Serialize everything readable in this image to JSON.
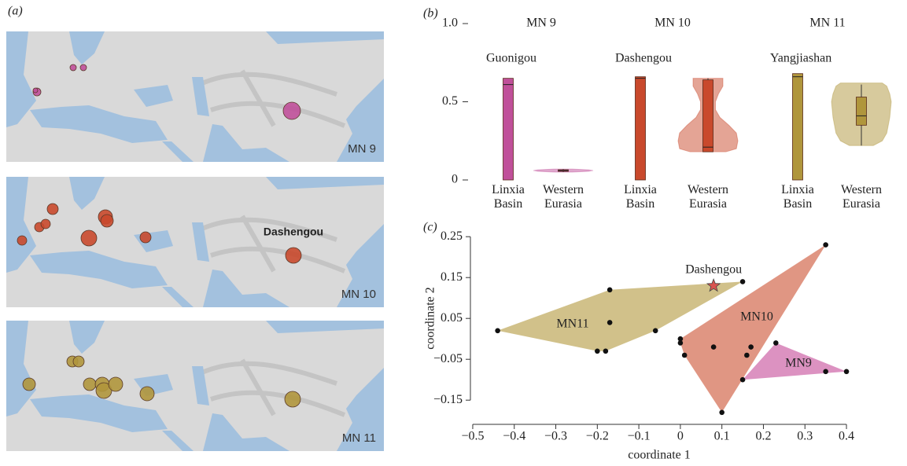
{
  "maps": {
    "panel_label": "(a)",
    "panels": [
      {
        "label": "MN 9",
        "color": "#c0509a"
      },
      {
        "label": "MN 10",
        "color": "#c9492c",
        "annotation": "Dashengou"
      },
      {
        "label": "MN 11",
        "color": "#b0963c"
      }
    ]
  },
  "chart_data": [
    {
      "type": "violin",
      "panel_label": "(b)",
      "ylim": [
        0,
        1
      ],
      "yticks": [
        0,
        0.5,
        {
          "value": 1,
          "label": "1.0"
        }
      ],
      "panels": [
        {
          "title": "MN 9",
          "annotation": "Guonigou",
          "color": "#c0509a",
          "groups": [
            {
              "name": "Linxia Basin",
              "box": {
                "min": 0,
                "q1": 0,
                "median": 0.61,
                "q3": 0.65,
                "max": 0.65
              }
            },
            {
              "name": "Western Eurasia",
              "box": {
                "min": 0.05,
                "q1": 0.055,
                "median": 0.06,
                "q3": 0.065,
                "max": 0.07
              },
              "violin": {
                "values": [
                  0.05,
                  0.055,
                  0.06,
                  0.065,
                  0.07
                ],
                "density": [
                  0.3,
                  0.85,
                  1,
                  0.85,
                  0.3
                ]
              }
            }
          ]
        },
        {
          "title": "MN 10",
          "annotation": "Dashengou",
          "color": "#c9492c",
          "groups": [
            {
              "name": "Linxia Basin",
              "box": {
                "min": 0,
                "q1": 0,
                "median": 0.65,
                "q3": 0.66,
                "max": 0.66
              }
            },
            {
              "name": "Western Eurasia",
              "box": {
                "min": 0.18,
                "q1": 0.18,
                "median": 0.21,
                "q3": 0.64,
                "max": 0.65
              },
              "violin": {
                "values": [
                  0.18,
                  0.2,
                  0.25,
                  0.3,
                  0.35,
                  0.4,
                  0.45,
                  0.5,
                  0.55,
                  0.6,
                  0.65
                ],
                "density": [
                  0.6,
                  0.95,
                  1,
                  0.95,
                  0.7,
                  0.4,
                  0.25,
                  0.25,
                  0.35,
                  0.5,
                  0.5
                ]
              }
            }
          ]
        },
        {
          "title": "MN 11",
          "annotation": "Yangjiashan",
          "color": "#b0963c",
          "groups": [
            {
              "name": "Linxia Basin",
              "box": {
                "min": 0,
                "q1": 0,
                "median": 0.66,
                "q3": 0.68,
                "max": 0.68
              }
            },
            {
              "name": "Western Eurasia",
              "box": {
                "min": 0.22,
                "q1": 0.35,
                "median": 0.41,
                "q3": 0.53,
                "max": 0.61
              },
              "violin": {
                "values": [
                  0.22,
                  0.25,
                  0.3,
                  0.4,
                  0.5,
                  0.55,
                  0.6,
                  0.62
                ],
                "density": [
                  0.4,
                  0.7,
                  0.85,
                  0.95,
                  1,
                  0.95,
                  0.85,
                  0.7
                ]
              }
            }
          ]
        }
      ]
    },
    {
      "type": "scatter",
      "panel_label": "(c)",
      "x_label": "coordinate 1",
      "y_label": "coordinate 2",
      "xlim": [
        -0.52,
        0.42
      ],
      "ylim": [
        -0.19,
        0.26
      ],
      "xticks": [
        {
          "value": -0.5,
          "label": "−0.5"
        },
        {
          "value": -0.4,
          "label": "−0.4"
        },
        {
          "value": -0.3,
          "label": "−0.3"
        },
        {
          "value": -0.2,
          "label": "−0.2"
        },
        {
          "value": -0.1,
          "label": "−0.1"
        },
        0,
        0.1,
        0.2,
        0.3,
        0.4
      ],
      "yticks": [
        {
          "value": -0.15,
          "label": "−0.15"
        },
        {
          "value": -0.05,
          "label": "−0.05"
        },
        0.05,
        0.15,
        0.25
      ],
      "series": [
        {
          "name": "MN11",
          "color": "#b89f4c",
          "x": [
            -0.44,
            -0.17,
            -0.17,
            -0.2,
            -0.18,
            -0.06,
            0.15
          ],
          "y": [
            0.02,
            0.12,
            0.04,
            -0.03,
            -0.03,
            0.02,
            0.14
          ]
        },
        {
          "name": "MN10",
          "color": "#cf5d40",
          "x": [
            0.35,
            0.1,
            0.0,
            0.0,
            0.01,
            0.08,
            0.16,
            0.17
          ],
          "y": [
            0.23,
            -0.18,
            0.0,
            -0.01,
            -0.04,
            -0.02,
            -0.04,
            -0.02
          ]
        },
        {
          "name": "MN9",
          "color": "#c9589f",
          "x": [
            0.23,
            0.15,
            0.4,
            0.35
          ],
          "y": [
            -0.01,
            -0.1,
            -0.08,
            -0.08
          ]
        }
      ],
      "annotation": {
        "label": "Dashengou",
        "x": 0.08,
        "y": 0.13
      }
    }
  ]
}
